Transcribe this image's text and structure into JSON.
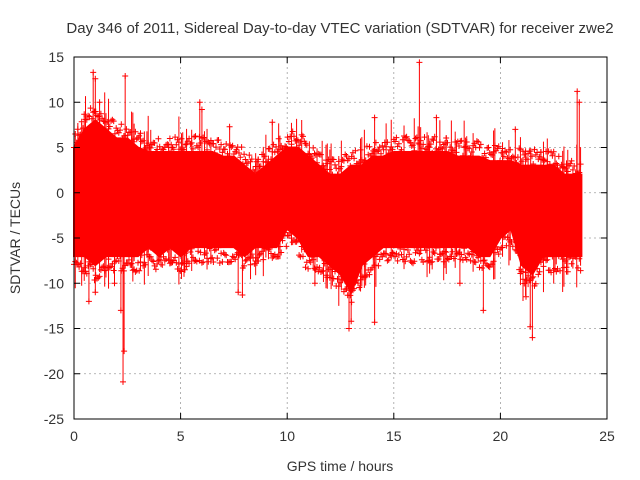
{
  "chart_data": {
    "type": "scatter",
    "title": "Day 346 of 2011, Sidereal Day-to-day VTEC variation (SDTVAR) for receiver zwe2",
    "xlabel": "GPS time / hours",
    "ylabel": "SDTVAR / TECUs",
    "xlim": [
      0,
      25
    ],
    "ylim": [
      -25,
      15
    ],
    "x_ticks": [
      0,
      5,
      10,
      15,
      20,
      25
    ],
    "y_ticks": [
      -25,
      -20,
      -15,
      -10,
      -5,
      0,
      5,
      10,
      15
    ],
    "x_tick_labels": [
      "0",
      "5",
      "10",
      "15",
      "20",
      "25"
    ],
    "y_tick_labels": [
      "-25",
      "-20",
      "-15",
      "-10",
      "-5",
      "0",
      "5",
      "10",
      "15"
    ],
    "grid": true,
    "marker": "+",
    "series": [
      {
        "name": "SDTVAR",
        "color": "#ff0000",
        "data_extent_hours": [
          0,
          23.8
        ],
        "envelope": {
          "x": [
            0,
            0.5,
            1,
            1.5,
            2,
            2.5,
            3,
            3.5,
            4,
            4.5,
            5,
            5.5,
            6,
            6.5,
            7,
            7.5,
            8,
            8.5,
            9,
            9.5,
            10,
            10.5,
            11,
            11.5,
            12,
            12.5,
            13,
            13.5,
            14,
            14.5,
            15,
            15.5,
            16,
            16.5,
            17,
            17.5,
            18,
            18.5,
            19,
            19.5,
            20,
            20.5,
            21,
            21.5,
            22,
            22.5,
            23,
            23.5,
            23.8
          ],
          "upper": [
            5,
            7,
            8,
            7,
            6,
            6,
            5,
            4.5,
            4.5,
            4.5,
            4.5,
            4.5,
            4.5,
            4.5,
            4,
            4,
            3,
            2,
            3,
            4,
            5,
            5,
            4,
            3,
            2,
            2,
            3,
            3,
            4,
            4,
            4.5,
            4.5,
            4.5,
            4.5,
            4.5,
            4.5,
            4,
            4,
            4,
            3.5,
            3.5,
            3.5,
            3,
            3,
            3,
            3,
            2,
            2,
            2
          ],
          "lower": [
            -7,
            -7,
            -8,
            -7,
            -7,
            -7,
            -7,
            -6,
            -7,
            -6,
            -7,
            -6,
            -6,
            -6,
            -6,
            -6,
            -7,
            -6,
            -6,
            -6,
            -4,
            -5,
            -7,
            -7,
            -8,
            -9,
            -11,
            -8,
            -7,
            -6,
            -6,
            -6,
            -6,
            -6,
            -6,
            -6,
            -6,
            -6,
            -7,
            -7,
            -5,
            -4,
            -8,
            -9,
            -7,
            -7,
            -7,
            -7,
            -7
          ]
        },
        "outliers": [
          {
            "x": 0.9,
            "y": 13.3
          },
          {
            "x": 1.0,
            "y": 12.6
          },
          {
            "x": 1.2,
            "y": 10.0
          },
          {
            "x": 2.4,
            "y": 12.9
          },
          {
            "x": 2.3,
            "y": -20.9
          },
          {
            "x": 2.35,
            "y": -17.5
          },
          {
            "x": 2.2,
            "y": -13.0
          },
          {
            "x": 0.7,
            "y": -12.0
          },
          {
            "x": 1.0,
            "y": -11.0
          },
          {
            "x": 1.9,
            "y": -10.0
          },
          {
            "x": 5.9,
            "y": 10.0
          },
          {
            "x": 6.0,
            "y": 9.2
          },
          {
            "x": 7.3,
            "y": 7.3
          },
          {
            "x": 9.3,
            "y": 7.8
          },
          {
            "x": 5.2,
            "y": -8.5
          },
          {
            "x": 7.7,
            "y": -11.0
          },
          {
            "x": 7.9,
            "y": -11.3
          },
          {
            "x": 11.3,
            "y": -10.0
          },
          {
            "x": 12.9,
            "y": -15.0
          },
          {
            "x": 13.0,
            "y": -14.2
          },
          {
            "x": 14.1,
            "y": -14.3
          },
          {
            "x": 14.1,
            "y": 8.3
          },
          {
            "x": 16.2,
            "y": 14.4
          },
          {
            "x": 17.0,
            "y": 8.3
          },
          {
            "x": 19.2,
            "y": -13.0
          },
          {
            "x": 20.7,
            "y": 7.0
          },
          {
            "x": 21.2,
            "y": -11.5
          },
          {
            "x": 21.4,
            "y": -14.8
          },
          {
            "x": 21.5,
            "y": -16.0
          },
          {
            "x": 23.6,
            "y": 11.2
          },
          {
            "x": 23.7,
            "y": 10.0
          },
          {
            "x": 21.9,
            "y": 4.5
          },
          {
            "x": 18.1,
            "y": -10.0
          }
        ]
      }
    ]
  }
}
